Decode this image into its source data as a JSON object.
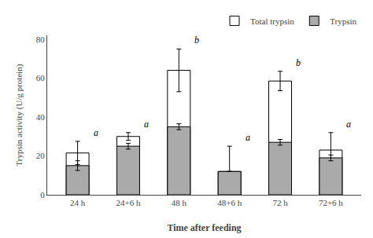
{
  "chart_data": {
    "type": "bar",
    "categories": [
      "24 h",
      "24+6 h",
      "48 h",
      "48+6 h",
      "72 h",
      "72+6 h"
    ],
    "series": [
      {
        "name": "Total trypsin",
        "color": "#ffffff",
        "values": [
          21.5,
          30,
          64,
          12,
          58.5,
          23
        ],
        "errors": [
          6,
          2,
          11,
          13,
          5,
          9
        ]
      },
      {
        "name": "Trypsin",
        "color": "#aaaaaa",
        "values": [
          15,
          25,
          35,
          12,
          27,
          19
        ],
        "errors": [
          2.5,
          1.5,
          1.5,
          0,
          1.5,
          1.5
        ]
      }
    ],
    "annotations": [
      {
        "category": "24 h",
        "text": "a"
      },
      {
        "category": "24+6 h",
        "text": "a"
      },
      {
        "category": "48 h",
        "text": "b"
      },
      {
        "category": "48+6 h",
        "text": "a"
      },
      {
        "category": "72 h",
        "text": "b"
      },
      {
        "category": "72+6 h",
        "text": "a"
      }
    ],
    "xlabel": "Time after feeding",
    "ylabel": "Trypsin activity (U/g protein)",
    "ylim": [
      0,
      82
    ],
    "yticks": [
      0,
      20,
      40,
      60,
      80
    ],
    "grid": false,
    "legend": "upper right"
  }
}
